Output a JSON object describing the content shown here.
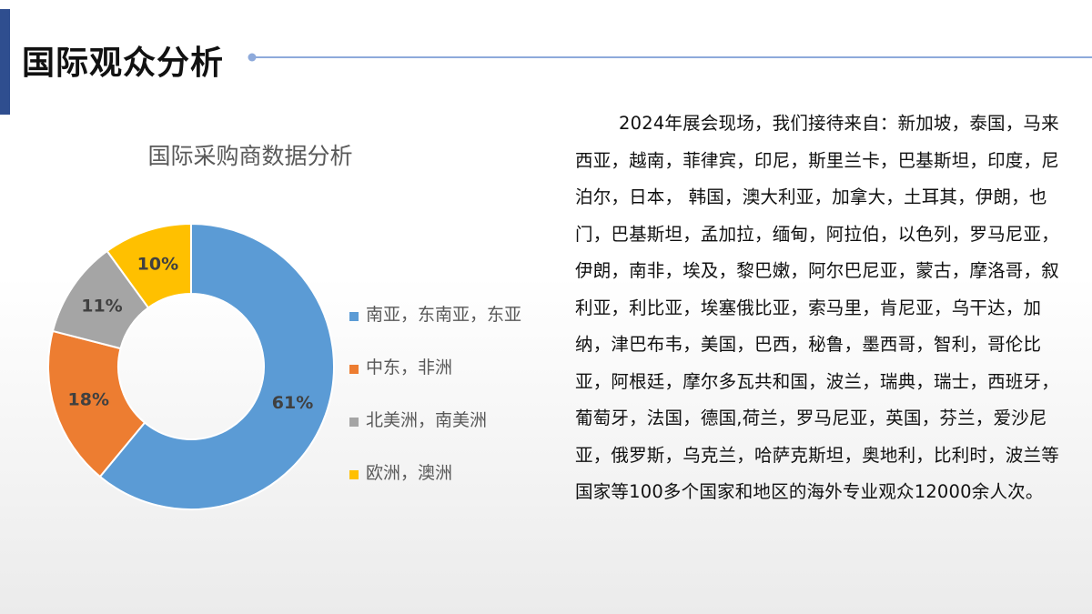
{
  "header": {
    "title": "国际观众分析"
  },
  "colors": {
    "accent_bar": "#2f4e8f",
    "title_line": "#8eaadb",
    "series": [
      "#5b9bd5",
      "#ed7d31",
      "#a5a5a5",
      "#ffc000"
    ]
  },
  "chart_data": {
    "type": "pie",
    "style": "donut",
    "title": "国际采购商数据分析",
    "categories": [
      "南亚，东南亚，东亚",
      "中东，非洲",
      "北美洲，南美洲",
      "欧洲，澳洲"
    ],
    "values": [
      61,
      18,
      11,
      10
    ],
    "data_labels": [
      "61%",
      "18%",
      "11%",
      "10%"
    ],
    "legend_position": "right"
  },
  "description": {
    "text": "2024年展会现场，我们接待来自：新加坡，泰国，马来西亚，越南，菲律宾，印尼，斯里兰卡，巴基斯坦，印度，尼泊尔，日本， 韩国，澳大利亚，加拿大，土耳其，伊朗，也门，巴基斯坦，孟加拉，缅甸，阿拉伯，以色列，罗马尼亚，伊朗，南非，埃及，黎巴嫩，阿尔巴尼亚，蒙古，摩洛哥，叙利亚，利比亚，埃塞俄比亚，索马里，肯尼亚，乌干达，加纳，津巴布韦，美国，巴西，秘鲁，墨西哥，智利，哥伦比亚，阿根廷，摩尔多瓦共和国，波兰，瑞典，瑞士，西班牙，葡萄牙，法国，德国,荷兰，罗马尼亚，英国，芬兰，爱沙尼亚，俄罗斯，乌克兰，哈萨克斯坦，奥地利，比利时，波兰等国家等100多个国家和地区的海外专业观众12000余人次。"
  }
}
